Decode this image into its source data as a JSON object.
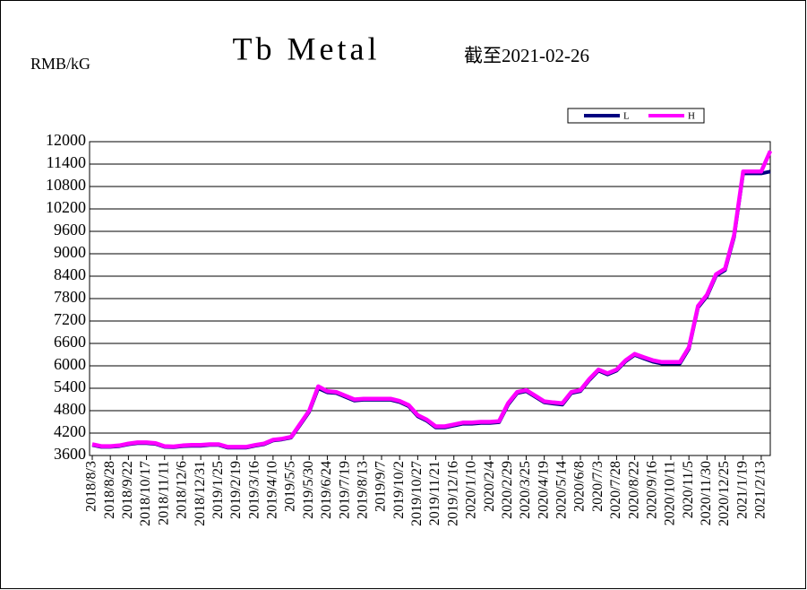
{
  "chart_data": {
    "type": "line",
    "title": "Tb Metal",
    "subtitle": "截至2021-02-26",
    "y_label": "RMB/kG",
    "categories": [
      "2018/8/3",
      null,
      "2018/8/28",
      null,
      "2018/9/22",
      null,
      "2018/10/17",
      null,
      "2018/11/11",
      null,
      "2018/12/6",
      null,
      "2018/12/31",
      null,
      "2019/1/25",
      null,
      "2019/2/19",
      null,
      "2019/3/16",
      null,
      "2019/4/10",
      null,
      "2019/5/5",
      null,
      "2019/5/30",
      null,
      "2019/6/24",
      null,
      "2019/7/19",
      null,
      "2019/8/13",
      null,
      "2019/9/7",
      null,
      "2019/10/2",
      null,
      "2019/10/27",
      null,
      "2019/11/21",
      null,
      "2019/12/16",
      null,
      "2020/1/10",
      null,
      "2020/2/4",
      null,
      "2020/2/29",
      null,
      "2020/3/25",
      null,
      "2020/4/19",
      null,
      "2020/5/14",
      null,
      "2020/6/8",
      null,
      "2020/7/3",
      null,
      "2020/7/28",
      null,
      "2020/8/22",
      null,
      "2020/9/16",
      null,
      "2020/10/11",
      null,
      "2020/11/5",
      null,
      "2020/11/30",
      null,
      "2020/12/25",
      null,
      "2021/1/19",
      null,
      "2021/2/13",
      null
    ],
    "series": [
      {
        "name": "L",
        "color": "#000080",
        "values": [
          3880,
          3830,
          3830,
          3850,
          3900,
          3930,
          3930,
          3910,
          3830,
          3820,
          3850,
          3860,
          3860,
          3880,
          3880,
          3810,
          3810,
          3810,
          3860,
          3900,
          4000,
          4030,
          4080,
          4420,
          4770,
          5400,
          5290,
          5270,
          5170,
          5070,
          5090,
          5090,
          5090,
          5090,
          5030,
          4920,
          4650,
          4530,
          4350,
          4350,
          4400,
          4450,
          4450,
          4470,
          4470,
          4490,
          4960,
          5270,
          5320,
          5170,
          5020,
          4990,
          4960,
          5270,
          5320,
          5620,
          5870,
          5770,
          5870,
          6120,
          6290,
          6200,
          6110,
          6060,
          6060,
          6060,
          6460,
          7560,
          7860,
          8410,
          8560,
          9450,
          11150,
          11150,
          11150,
          11200
        ]
      },
      {
        "name": "H",
        "color": "#ff00ff",
        "values": [
          3900,
          3850,
          3850,
          3870,
          3920,
          3950,
          3950,
          3930,
          3850,
          3840,
          3870,
          3880,
          3880,
          3900,
          3900,
          3830,
          3830,
          3830,
          3880,
          3920,
          4020,
          4050,
          4100,
          4450,
          4800,
          5450,
          5320,
          5300,
          5200,
          5100,
          5120,
          5120,
          5120,
          5120,
          5060,
          4950,
          4680,
          4560,
          4380,
          4380,
          4430,
          4480,
          4480,
          4500,
          4500,
          4520,
          5000,
          5300,
          5350,
          5200,
          5050,
          5020,
          5000,
          5300,
          5350,
          5650,
          5900,
          5800,
          5900,
          6150,
          6320,
          6230,
          6150,
          6100,
          6100,
          6100,
          6500,
          7600,
          7900,
          8450,
          8600,
          9500,
          11200,
          11200,
          11200,
          11750
        ]
      }
    ],
    "ylim": [
      3600,
      12000
    ],
    "yticks": [
      3600,
      4200,
      4800,
      5400,
      6000,
      6600,
      7200,
      7800,
      8400,
      9000,
      9600,
      10200,
      10800,
      11400,
      12000
    ],
    "grid": true,
    "legend": "top-right"
  }
}
